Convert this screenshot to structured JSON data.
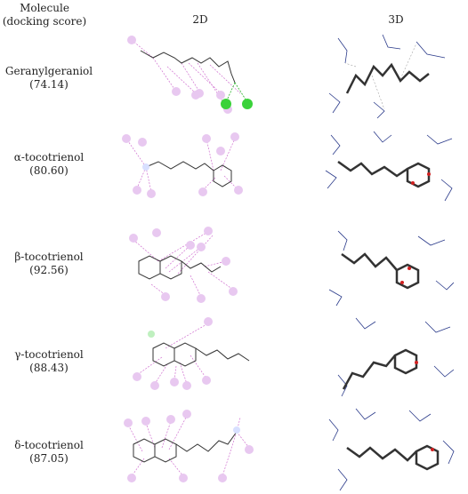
{
  "header": {
    "molecule_line1": "Molecule",
    "molecule_line2": "(docking score)",
    "col_2d": "2D",
    "col_3d": "3D"
  },
  "rows": [
    {
      "name": "Geranylgeraniol",
      "score": "(74.14)"
    },
    {
      "name": "α-tocotrienol",
      "score": "(80.60)"
    },
    {
      "name": "β-tocotrienol",
      "score": "(92.56)"
    },
    {
      "name": "γ-tocotrienol",
      "score": "(88.43)"
    },
    {
      "name": "δ-tocotrienol",
      "score": "(87.05)"
    }
  ],
  "colors": {
    "alkyl_residue": "#e8c8f0",
    "alkyl_line": "#d070d0",
    "hbond_residue": "#3ad23a",
    "hbond_line": "#22b022",
    "stick": "#333333",
    "oxygen": "#d02020",
    "residue_3d": "#2a3a8a"
  }
}
